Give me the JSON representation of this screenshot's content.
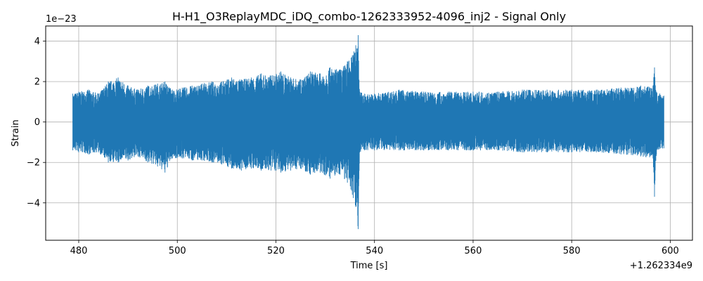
{
  "chart_data": {
    "type": "line",
    "title": "H-H1_O3ReplayMDC_iDQ_combo-1262333952-4096_inj2 - Signal Only",
    "xlabel": "Time [s]",
    "ylabel": "Strain",
    "x_offset_label": "+1.262334e9",
    "y_scale_label": "1e−23",
    "xlim": [
      473.3,
      604.5
    ],
    "ylim": [
      -5.85,
      4.75
    ],
    "x_ticks": [
      480,
      500,
      520,
      540,
      560,
      580,
      600
    ],
    "x_tick_labels": [
      "480",
      "500",
      "520",
      "540",
      "560",
      "580",
      "600"
    ],
    "y_ticks": [
      -4,
      -2,
      0,
      2,
      4
    ],
    "y_tick_labels": [
      "−4",
      "−2",
      "0",
      "2",
      "4"
    ],
    "grid": true,
    "series": [
      {
        "color": "#1f77b4",
        "x": [
          478.8,
          480.0,
          482.0,
          484.0,
          486.0,
          488.0,
          490.0,
          492.0,
          494.0,
          496.0,
          497.5,
          499.0,
          501.0,
          503.0,
          505.0,
          507.0,
          509.0,
          511.0,
          513.0,
          515.0,
          517.0,
          519.0,
          521.0,
          523.0,
          525.0,
          527.0,
          529.0,
          531.0,
          533.0,
          534.5,
          535.5,
          536.2,
          536.7,
          537.0,
          538.0,
          540.0,
          545.0,
          550.0,
          555.0,
          560.0,
          565.0,
          570.0,
          575.0,
          580.0,
          585.0,
          590.0,
          594.0,
          596.5,
          596.8,
          597.2,
          598.7
        ],
        "y_max": [
          1.4,
          1.5,
          1.6,
          1.4,
          2.0,
          2.2,
          1.8,
          1.6,
          1.8,
          1.9,
          2.0,
          1.6,
          1.7,
          1.8,
          1.9,
          2.0,
          2.0,
          2.2,
          2.1,
          2.2,
          2.4,
          2.3,
          2.5,
          2.2,
          2.1,
          2.5,
          2.4,
          2.7,
          2.6,
          3.0,
          3.3,
          3.8,
          4.3,
          1.5,
          1.4,
          1.4,
          1.6,
          1.5,
          1.5,
          1.5,
          1.5,
          1.6,
          1.6,
          1.6,
          1.6,
          1.7,
          1.8,
          1.8,
          2.7,
          1.5,
          1.3
        ],
        "y_min": [
          -1.4,
          -1.5,
          -1.6,
          -1.5,
          -2.0,
          -2.0,
          -1.9,
          -1.7,
          -2.0,
          -2.2,
          -2.5,
          -1.8,
          -1.8,
          -1.9,
          -1.9,
          -2.0,
          -2.1,
          -2.3,
          -2.4,
          -2.3,
          -2.4,
          -2.4,
          -2.5,
          -2.4,
          -2.3,
          -2.6,
          -2.5,
          -2.8,
          -2.6,
          -3.0,
          -3.6,
          -4.2,
          -5.3,
          -1.5,
          -1.4,
          -1.4,
          -1.4,
          -1.4,
          -1.4,
          -1.4,
          -1.4,
          -1.5,
          -1.5,
          -1.5,
          -1.5,
          -1.6,
          -1.7,
          -1.8,
          -3.7,
          -1.6,
          -1.3
        ]
      }
    ]
  }
}
